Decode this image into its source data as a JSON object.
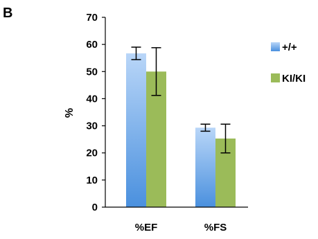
{
  "panel_label": "B",
  "chart_data": {
    "type": "bar",
    "categories": [
      "%EF",
      "%FS"
    ],
    "series": [
      {
        "name": "+/+",
        "values": [
          56.7,
          29.3
        ],
        "errors": [
          2.3,
          1.3
        ],
        "color": "#6aa9ee",
        "color_dark": "#4a8ed9"
      },
      {
        "name": "KI/KI",
        "values": [
          50.0,
          25.3
        ],
        "errors": [
          8.8,
          5.3
        ],
        "color": "#9bbb59",
        "color_dark": "#9bbb59"
      }
    ],
    "ylabel": "%",
    "xlabel": "",
    "ylim": [
      0,
      70
    ],
    "yticks": [
      0,
      10,
      20,
      30,
      40,
      50,
      60,
      70
    ],
    "grid": false,
    "legend_position": "right"
  }
}
